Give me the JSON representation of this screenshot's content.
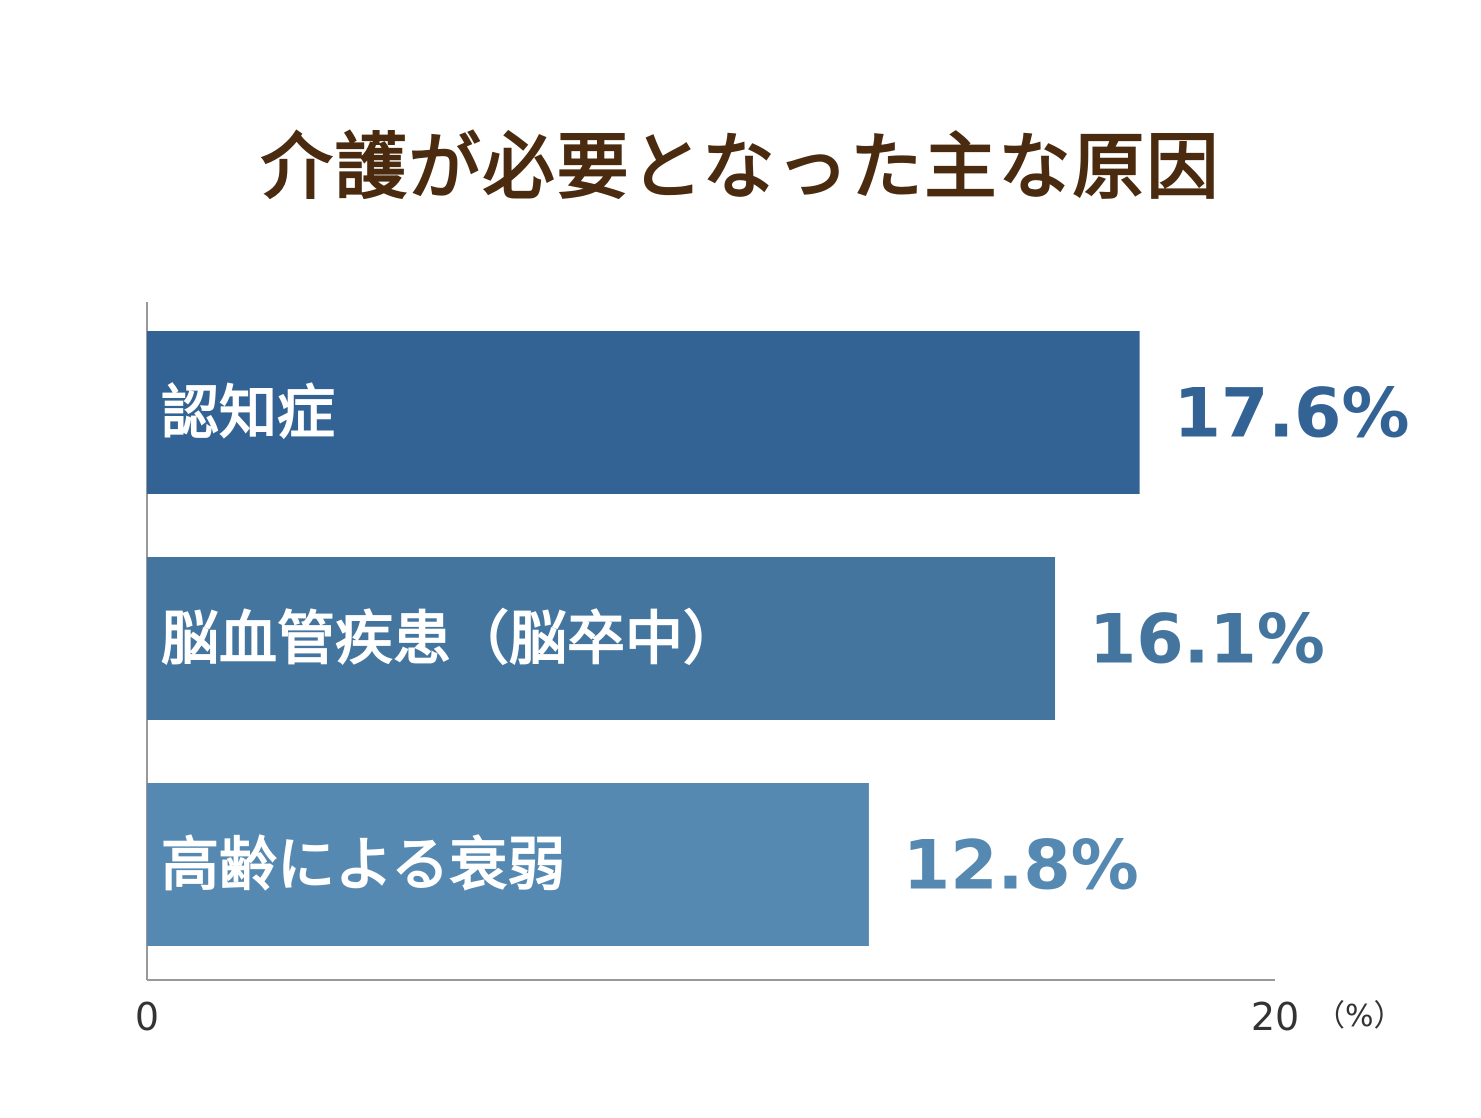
{
  "chart_data": {
    "type": "bar",
    "orientation": "horizontal",
    "title": "介護が必要となった主な原因",
    "categories": [
      "認知症",
      "脳血管疾患（脳卒中）",
      "高齢による衰弱"
    ],
    "values": [
      17.6,
      16.1,
      12.8
    ],
    "value_labels": [
      "17.6%",
      "16.1%",
      "12.8%"
    ],
    "xlim": [
      0,
      20
    ],
    "x_ticks": [
      "0",
      "20"
    ],
    "x_unit": "（%）",
    "grid": false,
    "colors": [
      "#336394",
      "#43759f",
      "#5589b1"
    ]
  }
}
